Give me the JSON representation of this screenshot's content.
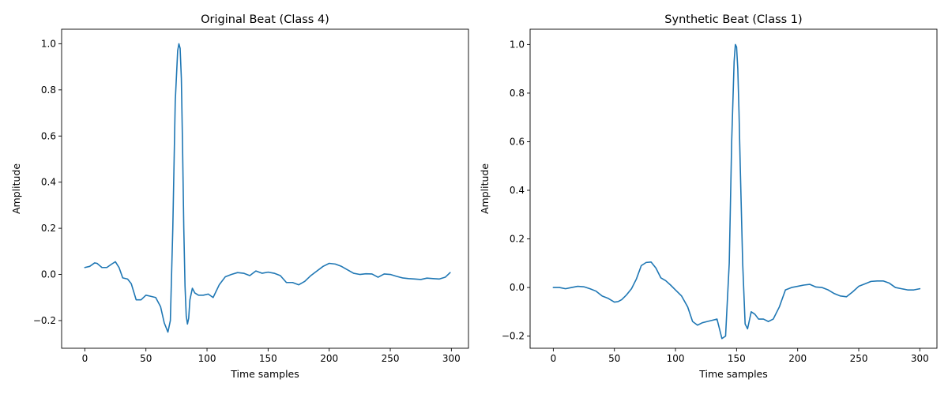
{
  "chart_data": [
    {
      "type": "line",
      "title": "Original Beat (Class 4)",
      "xlabel": "Time samples",
      "ylabel": "Amplitude",
      "xlim": [
        -19,
        314
      ],
      "ylim": [
        -0.32,
        1.063
      ],
      "xticks": [
        0,
        50,
        100,
        150,
        200,
        250,
        300
      ],
      "yticks": [
        -0.2,
        0.0,
        0.2,
        0.4,
        0.6,
        0.8,
        1.0
      ],
      "grid": false,
      "series": [
        {
          "color": "#1f77b4",
          "x": [
            0,
            4,
            8,
            10,
            14,
            18,
            22,
            25,
            28,
            31,
            35,
            38,
            42,
            46,
            50,
            54,
            58,
            62,
            65,
            68,
            70,
            72,
            74,
            76,
            77,
            78,
            79,
            80,
            81,
            82,
            83,
            84,
            85,
            86,
            88,
            90,
            93,
            97,
            101,
            105,
            110,
            115,
            120,
            125,
            130,
            135,
            140,
            145,
            150,
            155,
            160,
            165,
            170,
            175,
            180,
            185,
            190,
            195,
            200,
            205,
            210,
            215,
            220,
            225,
            230,
            235,
            240,
            245,
            250,
            255,
            260,
            265,
            270,
            275,
            280,
            285,
            290,
            295,
            299
          ],
          "y": [
            0.03,
            0.035,
            0.05,
            0.048,
            0.03,
            0.03,
            0.045,
            0.055,
            0.03,
            -0.015,
            -0.02,
            -0.04,
            -0.11,
            -0.11,
            -0.09,
            -0.095,
            -0.1,
            -0.14,
            -0.21,
            -0.25,
            -0.2,
            0.2,
            0.75,
            0.97,
            1.0,
            0.98,
            0.85,
            0.55,
            0.2,
            -0.05,
            -0.18,
            -0.215,
            -0.19,
            -0.11,
            -0.06,
            -0.08,
            -0.09,
            -0.09,
            -0.085,
            -0.1,
            -0.045,
            -0.01,
            0.0,
            0.008,
            0.005,
            -0.005,
            0.015,
            0.005,
            0.01,
            0.005,
            -0.005,
            -0.035,
            -0.035,
            -0.045,
            -0.03,
            -0.005,
            0.015,
            0.035,
            0.048,
            0.045,
            0.035,
            0.02,
            0.005,
            0.0,
            0.003,
            0.002,
            -0.012,
            0.002,
            0.0,
            -0.008,
            -0.015,
            -0.018,
            -0.02,
            -0.022,
            -0.016,
            -0.018,
            -0.02,
            -0.012,
            0.008
          ]
        }
      ]
    },
    {
      "type": "line",
      "title": "Synthetic Beat (Class 1)",
      "xlabel": "Time samples",
      "ylabel": "Amplitude",
      "xlim": [
        -19,
        314
      ],
      "ylim": [
        -0.25,
        1.063
      ],
      "xticks": [
        0,
        50,
        100,
        150,
        200,
        250,
        300
      ],
      "yticks": [
        -0.2,
        0.0,
        0.2,
        0.4,
        0.6,
        0.8,
        1.0
      ],
      "grid": false,
      "series": [
        {
          "color": "#1f77b4",
          "x": [
            0,
            5,
            10,
            15,
            20,
            25,
            30,
            35,
            40,
            45,
            50,
            53,
            56,
            60,
            64,
            68,
            72,
            76,
            80,
            84,
            88,
            92,
            96,
            100,
            105,
            110,
            114,
            118,
            122,
            126,
            130,
            134,
            138,
            141,
            144,
            146,
            148,
            149,
            150,
            151,
            152,
            153,
            155,
            157,
            159,
            162,
            165,
            168,
            172,
            176,
            180,
            185,
            190,
            195,
            200,
            205,
            210,
            215,
            220,
            225,
            230,
            235,
            240,
            245,
            250,
            255,
            260,
            265,
            270,
            275,
            280,
            285,
            290,
            295,
            300
          ],
          "y": [
            0.0,
            0.0,
            -0.005,
            0.0,
            0.005,
            0.003,
            -0.005,
            -0.015,
            -0.035,
            -0.045,
            -0.06,
            -0.058,
            -0.05,
            -0.03,
            -0.005,
            0.035,
            0.09,
            0.103,
            0.105,
            0.08,
            0.04,
            0.028,
            0.01,
            -0.01,
            -0.035,
            -0.08,
            -0.14,
            -0.155,
            -0.145,
            -0.14,
            -0.135,
            -0.13,
            -0.21,
            -0.2,
            0.1,
            0.6,
            0.93,
            1.0,
            0.99,
            0.9,
            0.72,
            0.5,
            0.1,
            -0.15,
            -0.17,
            -0.1,
            -0.11,
            -0.13,
            -0.13,
            -0.14,
            -0.13,
            -0.08,
            -0.01,
            0.0,
            0.005,
            0.01,
            0.013,
            0.002,
            0.0,
            -0.01,
            -0.025,
            -0.035,
            -0.038,
            -0.018,
            0.005,
            0.015,
            0.025,
            0.027,
            0.027,
            0.018,
            0.0,
            -0.005,
            -0.01,
            -0.01,
            -0.005
          ]
        }
      ]
    }
  ]
}
